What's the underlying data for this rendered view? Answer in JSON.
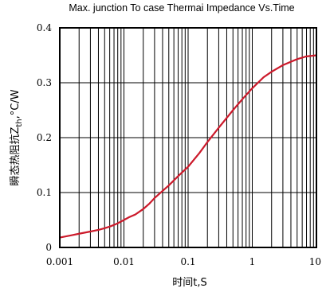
{
  "chart_data": {
    "type": "line",
    "title": "Max. junction To case Thermai Impedance Vs.Time",
    "xlabel": "时间t,S",
    "ylabel": "瞬态热阻抗Zth,°C/W",
    "ylabel_parts": {
      "prefix": "瞬态热阻抗Z",
      "subscript": "th",
      "suffix": ",°C/W"
    },
    "x_scale": "log",
    "xlim": [
      0.001,
      10
    ],
    "ylim": [
      0,
      0.4
    ],
    "x_ticks": [
      0.001,
      0.01,
      0.1,
      1,
      10
    ],
    "x_tick_labels": [
      "0.001",
      "0.01",
      "0.1",
      "1",
      "10"
    ],
    "y_ticks": [
      0,
      0.1,
      0.2,
      0.3,
      0.4
    ],
    "y_tick_labels": [
      "0",
      "0.1",
      "0.2",
      "0.3",
      "0.4"
    ],
    "grid": true,
    "series_color": "#cc1a2b",
    "series": [
      {
        "x": [
          0.001,
          0.0015,
          0.002,
          0.003,
          0.004,
          0.005,
          0.006,
          0.007,
          0.008,
          0.01,
          0.012,
          0.015,
          0.02,
          0.025,
          0.03,
          0.04,
          0.05,
          0.07,
          0.1,
          0.15,
          0.2,
          0.3,
          0.5,
          0.7,
          1,
          1.5,
          2,
          3,
          5,
          7,
          10
        ],
        "y": [
          0.018,
          0.022,
          0.025,
          0.029,
          0.032,
          0.035,
          0.038,
          0.041,
          0.044,
          0.05,
          0.055,
          0.06,
          0.07,
          0.08,
          0.09,
          0.103,
          0.113,
          0.13,
          0.147,
          0.172,
          0.192,
          0.218,
          0.25,
          0.27,
          0.29,
          0.31,
          0.32,
          0.332,
          0.343,
          0.348,
          0.35
        ]
      }
    ]
  }
}
